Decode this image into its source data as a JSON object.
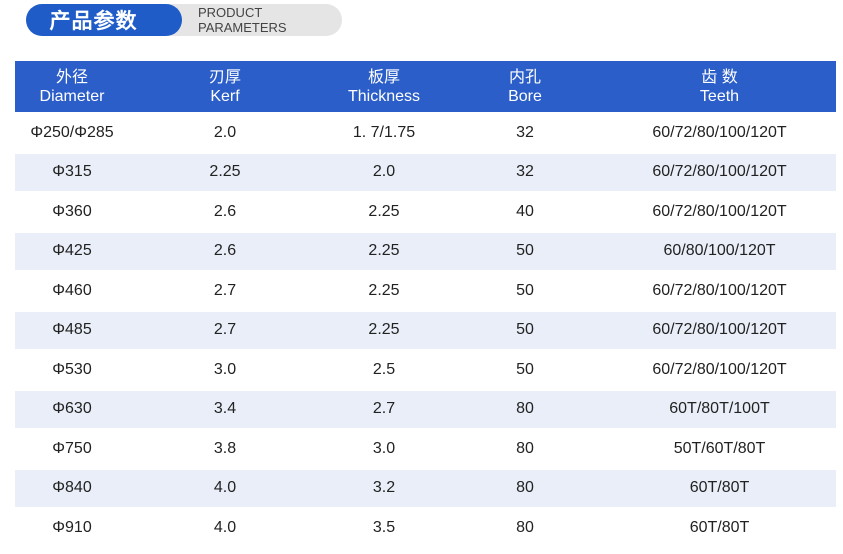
{
  "header": {
    "title_cn": "产品参数",
    "title_en": "PRODUCT PARAMETERS"
  },
  "table": {
    "columns": [
      {
        "cn": "外径",
        "en": "Diameter"
      },
      {
        "cn": "刃厚",
        "en": "Kerf"
      },
      {
        "cn": "板厚",
        "en": "Thickness"
      },
      {
        "cn": "内孔",
        "en": "Bore"
      },
      {
        "cn": "齿 数",
        "en": "Teeth"
      }
    ],
    "rows": [
      [
        "Φ250/Φ285",
        "2.0",
        "1. 7/1.75",
        "32",
        "60/72/80/100/120T"
      ],
      [
        "Φ315",
        "2.25",
        "2.0",
        "32",
        "60/72/80/100/120T"
      ],
      [
        "Φ360",
        "2.6",
        "2.25",
        "40",
        "60/72/80/100/120T"
      ],
      [
        "Φ425",
        "2.6",
        "2.25",
        "50",
        "60/80/100/120T"
      ],
      [
        "Φ460",
        "2.7",
        "2.25",
        "50",
        "60/72/80/100/120T"
      ],
      [
        "Φ485",
        "2.7",
        "2.25",
        "50",
        "60/72/80/100/120T"
      ],
      [
        "Φ530",
        "3.0",
        "2.5",
        "50",
        "60/72/80/100/120T"
      ],
      [
        "Φ630",
        "3.4",
        "2.7",
        "80",
        "60T/80T/100T"
      ],
      [
        "Φ750",
        "3.8",
        "3.0",
        "80",
        "50T/60T/80T"
      ],
      [
        "Φ840",
        "4.0",
        "3.2",
        "80",
        "60T/80T"
      ],
      [
        "Φ910",
        "4.0",
        "3.5",
        "80",
        "60T/80T"
      ]
    ]
  },
  "colors": {
    "accent": "#1f5cc8",
    "header_bg": "#2b5ec8",
    "stripe": "#e9eef8"
  }
}
